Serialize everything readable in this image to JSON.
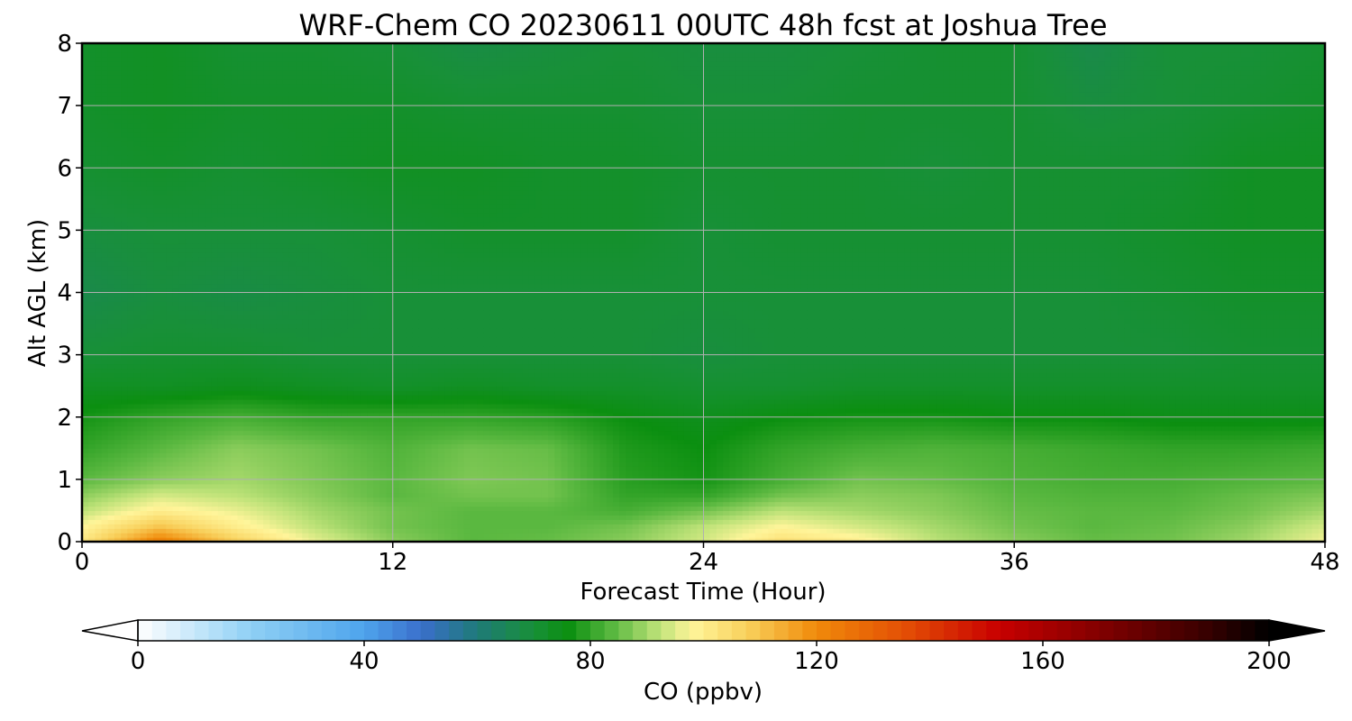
{
  "chart_data": {
    "type": "heatmap",
    "title": "WRF-Chem CO  20230611 00UTC 48h fcst at Joshua Tree",
    "xlabel": "Forecast Time (Hour)",
    "ylabel": "Alt AGL (km)",
    "xlim": [
      0,
      48
    ],
    "ylim": [
      0,
      8
    ],
    "xticks": [
      0,
      12,
      24,
      36,
      48
    ],
    "yticks": [
      0,
      1,
      2,
      3,
      4,
      5,
      6,
      7,
      8
    ],
    "grid": true,
    "x_hours": [
      0,
      3,
      6,
      9,
      12,
      15,
      18,
      21,
      24,
      27,
      30,
      33,
      36,
      39,
      42,
      45,
      48
    ],
    "y_km": [
      0,
      0.25,
      0.5,
      0.75,
      1,
      1.5,
      2,
      2.5,
      3,
      4,
      5,
      6,
      7,
      8
    ],
    "co_ppbv": [
      [
        102,
        124,
        108,
        96,
        88,
        84,
        85,
        88,
        94,
        104,
        100,
        92,
        88,
        85,
        86,
        90,
        97
      ],
      [
        98,
        110,
        100,
        92,
        86,
        84,
        84,
        86,
        92,
        98,
        94,
        90,
        86,
        84,
        85,
        88,
        94
      ],
      [
        92,
        100,
        96,
        90,
        86,
        84,
        84,
        82,
        86,
        92,
        90,
        88,
        85,
        84,
        84,
        86,
        90
      ],
      [
        88,
        94,
        92,
        88,
        84,
        86,
        86,
        80,
        80,
        86,
        88,
        87,
        84,
        83,
        83,
        85,
        87
      ],
      [
        84,
        88,
        90,
        87,
        84,
        87,
        86,
        79,
        77,
        82,
        86,
        85,
        83,
        82,
        82,
        83,
        84
      ],
      [
        80,
        84,
        88,
        86,
        83,
        86,
        85,
        78,
        76,
        80,
        82,
        83,
        82,
        81,
        80,
        80,
        81
      ],
      [
        77,
        80,
        82,
        80,
        80,
        80,
        79,
        76,
        74,
        76,
        77,
        77,
        76,
        76,
        75,
        75,
        75
      ],
      [
        73,
        73,
        74,
        73,
        72,
        73,
        72,
        72,
        71,
        71,
        72,
        72,
        72,
        72,
        72,
        72,
        72
      ],
      [
        70,
        71,
        71,
        70,
        70,
        70,
        70,
        70,
        69,
        70,
        70,
        70,
        70,
        70,
        70,
        71,
        71
      ],
      [
        67,
        69,
        68,
        69,
        70,
        70,
        70,
        70,
        70,
        70,
        70,
        70,
        70,
        70,
        71,
        72,
        72
      ],
      [
        69,
        70,
        70,
        70,
        71,
        72,
        72,
        72,
        70,
        71,
        71,
        71,
        71,
        71,
        72,
        73,
        73
      ],
      [
        71,
        72,
        71,
        72,
        73,
        73,
        72,
        72,
        71,
        71,
        71,
        70,
        71,
        71,
        71,
        73,
        73
      ],
      [
        72,
        73,
        72,
        72,
        72,
        71,
        71,
        71,
        70,
        70,
        71,
        71,
        71,
        69,
        70,
        71,
        72
      ],
      [
        72,
        73,
        71,
        71,
        70,
        68,
        69,
        70,
        69,
        69,
        70,
        71,
        71,
        67,
        70,
        70,
        71
      ]
    ],
    "colorbar": {
      "label": "CO  (ppbv)",
      "min": 0,
      "max": 200,
      "ticks": [
        0,
        40,
        80,
        120,
        160,
        200
      ],
      "extend": "both",
      "colors": {
        "0": "#ffffff",
        "20": "#8fd0f5",
        "40": "#4ea4ec",
        "50": "#3a6fcc",
        "60": "#1f7a78",
        "70": "#189038",
        "76": "#0b8f10",
        "84": "#5ab840",
        "92": "#bde278",
        "98": "#fff59a",
        "108": "#f8cf5a",
        "120": "#f08a0a",
        "136": "#e34d05",
        "152": "#c90000",
        "172": "#7a0000",
        "188": "#3c0000",
        "200": "#000000"
      }
    }
  }
}
